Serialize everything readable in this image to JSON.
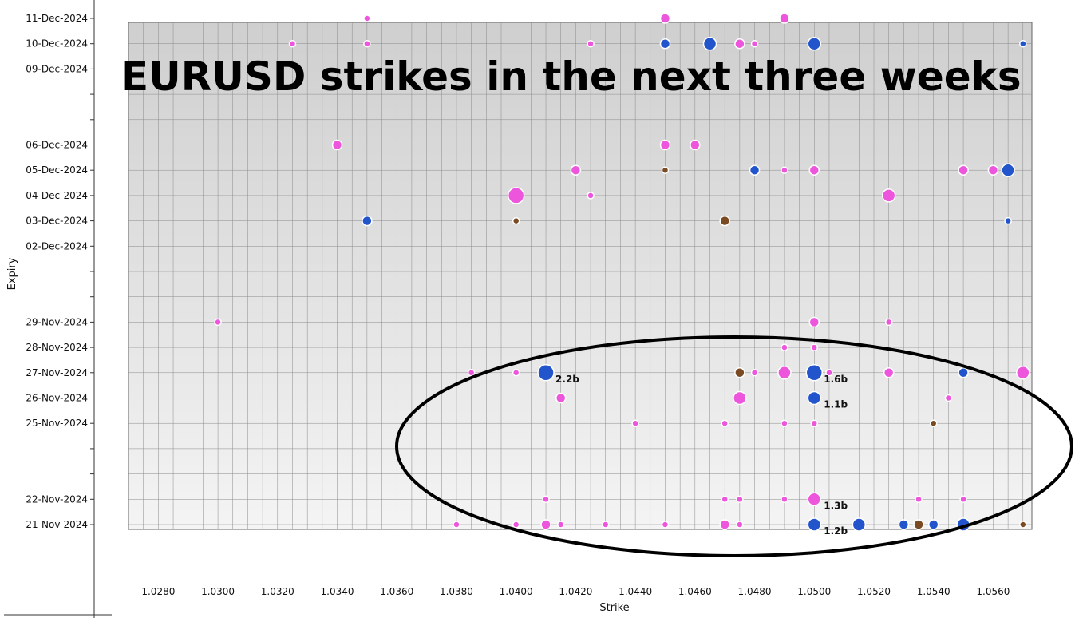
{
  "chart_data": {
    "type": "scatter",
    "title": "EURUSD strikes in the next three weeks",
    "xlabel": "Strike",
    "ylabel": "Expiry",
    "xlim": [
      1.027,
      1.0573
    ],
    "x_ticks": [
      "1.0280",
      "1.0300",
      "1.0320",
      "1.0340",
      "1.0360",
      "1.0380",
      "1.0400",
      "1.0420",
      "1.0440",
      "1.0460",
      "1.0480",
      "1.0500",
      "1.0520",
      "1.0540",
      "1.0560"
    ],
    "y_ticks": [
      "21-Nov-2024",
      "22-Nov-2024",
      "25-Nov-2024",
      "26-Nov-2024",
      "27-Nov-2024",
      "28-Nov-2024",
      "29-Nov-2024",
      "02-Dec-2024",
      "03-Dec-2024",
      "04-Dec-2024",
      "05-Dec-2024",
      "06-Dec-2024",
      "09-Dec-2024",
      "10-Dec-2024",
      "11-Dec-2024"
    ],
    "grid": true,
    "colors": {
      "pink": "#ee55dd",
      "blue": "#2255cc",
      "brown": "#7a4a22"
    },
    "annotations": [
      {
        "text": "2.2b",
        "x": 1.041,
        "y": "27-Nov-2024"
      },
      {
        "text": "1.6b",
        "x": 1.05,
        "y": "27-Nov-2024"
      },
      {
        "text": "1.1b",
        "x": 1.05,
        "y": "26-Nov-2024"
      },
      {
        "text": "1.3b",
        "x": 1.05,
        "y": "22-Nov-2024"
      },
      {
        "text": "1.2b",
        "x": 1.05,
        "y": "21-Nov-2024"
      }
    ],
    "points": [
      {
        "x": 1.035,
        "y": "11-Dec-2024",
        "c": "pink",
        "s": 1
      },
      {
        "x": 1.045,
        "y": "11-Dec-2024",
        "c": "pink",
        "s": 2
      },
      {
        "x": 1.049,
        "y": "11-Dec-2024",
        "c": "pink",
        "s": 2
      },
      {
        "x": 1.0325,
        "y": "10-Dec-2024",
        "c": "pink",
        "s": 1
      },
      {
        "x": 1.035,
        "y": "10-Dec-2024",
        "c": "pink",
        "s": 1
      },
      {
        "x": 1.0425,
        "y": "10-Dec-2024",
        "c": "pink",
        "s": 1
      },
      {
        "x": 1.045,
        "y": "10-Dec-2024",
        "c": "blue",
        "s": 2
      },
      {
        "x": 1.0465,
        "y": "10-Dec-2024",
        "c": "blue",
        "s": 3
      },
      {
        "x": 1.0475,
        "y": "10-Dec-2024",
        "c": "pink",
        "s": 2
      },
      {
        "x": 1.048,
        "y": "10-Dec-2024",
        "c": "pink",
        "s": 1
      },
      {
        "x": 1.05,
        "y": "10-Dec-2024",
        "c": "blue",
        "s": 3
      },
      {
        "x": 1.057,
        "y": "10-Dec-2024",
        "c": "blue",
        "s": 1
      },
      {
        "x": 1.034,
        "y": "06-Dec-2024",
        "c": "pink",
        "s": 2
      },
      {
        "x": 1.045,
        "y": "06-Dec-2024",
        "c": "pink",
        "s": 2
      },
      {
        "x": 1.046,
        "y": "06-Dec-2024",
        "c": "pink",
        "s": 2
      },
      {
        "x": 1.042,
        "y": "05-Dec-2024",
        "c": "pink",
        "s": 2
      },
      {
        "x": 1.045,
        "y": "05-Dec-2024",
        "c": "brown",
        "s": 1
      },
      {
        "x": 1.048,
        "y": "05-Dec-2024",
        "c": "blue",
        "s": 2
      },
      {
        "x": 1.049,
        "y": "05-Dec-2024",
        "c": "pink",
        "s": 1
      },
      {
        "x": 1.05,
        "y": "05-Dec-2024",
        "c": "pink",
        "s": 2
      },
      {
        "x": 1.055,
        "y": "05-Dec-2024",
        "c": "pink",
        "s": 2
      },
      {
        "x": 1.056,
        "y": "05-Dec-2024",
        "c": "pink",
        "s": 2
      },
      {
        "x": 1.0565,
        "y": "05-Dec-2024",
        "c": "blue",
        "s": 3
      },
      {
        "x": 1.04,
        "y": "04-Dec-2024",
        "c": "pink",
        "s": 4
      },
      {
        "x": 1.0425,
        "y": "04-Dec-2024",
        "c": "pink",
        "s": 1
      },
      {
        "x": 1.0525,
        "y": "04-Dec-2024",
        "c": "pink",
        "s": 3
      },
      {
        "x": 1.035,
        "y": "03-Dec-2024",
        "c": "blue",
        "s": 2
      },
      {
        "x": 1.04,
        "y": "03-Dec-2024",
        "c": "brown",
        "s": 1
      },
      {
        "x": 1.047,
        "y": "03-Dec-2024",
        "c": "brown",
        "s": 2
      },
      {
        "x": 1.0565,
        "y": "03-Dec-2024",
        "c": "blue",
        "s": 1
      },
      {
        "x": 1.03,
        "y": "29-Nov-2024",
        "c": "pink",
        "s": 1
      },
      {
        "x": 1.05,
        "y": "29-Nov-2024",
        "c": "pink",
        "s": 2
      },
      {
        "x": 1.0525,
        "y": "29-Nov-2024",
        "c": "pink",
        "s": 1
      },
      {
        "x": 1.049,
        "y": "28-Nov-2024",
        "c": "pink",
        "s": 1
      },
      {
        "x": 1.05,
        "y": "28-Nov-2024",
        "c": "pink",
        "s": 1
      },
      {
        "x": 1.0385,
        "y": "27-Nov-2024",
        "c": "pink",
        "s": 1
      },
      {
        "x": 1.04,
        "y": "27-Nov-2024",
        "c": "pink",
        "s": 1
      },
      {
        "x": 1.041,
        "y": "27-Nov-2024",
        "c": "blue",
        "s": 4
      },
      {
        "x": 1.0475,
        "y": "27-Nov-2024",
        "c": "brown",
        "s": 2
      },
      {
        "x": 1.048,
        "y": "27-Nov-2024",
        "c": "pink",
        "s": 1
      },
      {
        "x": 1.049,
        "y": "27-Nov-2024",
        "c": "pink",
        "s": 3
      },
      {
        "x": 1.05,
        "y": "27-Nov-2024",
        "c": "blue",
        "s": 4
      },
      {
        "x": 1.0505,
        "y": "27-Nov-2024",
        "c": "pink",
        "s": 1
      },
      {
        "x": 1.0525,
        "y": "27-Nov-2024",
        "c": "pink",
        "s": 2
      },
      {
        "x": 1.055,
        "y": "27-Nov-2024",
        "c": "blue",
        "s": 2
      },
      {
        "x": 1.057,
        "y": "27-Nov-2024",
        "c": "pink",
        "s": 3
      },
      {
        "x": 1.0415,
        "y": "26-Nov-2024",
        "c": "pink",
        "s": 2
      },
      {
        "x": 1.0475,
        "y": "26-Nov-2024",
        "c": "pink",
        "s": 3
      },
      {
        "x": 1.05,
        "y": "26-Nov-2024",
        "c": "blue",
        "s": 3
      },
      {
        "x": 1.0545,
        "y": "26-Nov-2024",
        "c": "pink",
        "s": 1
      },
      {
        "x": 1.044,
        "y": "25-Nov-2024",
        "c": "pink",
        "s": 1
      },
      {
        "x": 1.047,
        "y": "25-Nov-2024",
        "c": "pink",
        "s": 1
      },
      {
        "x": 1.049,
        "y": "25-Nov-2024",
        "c": "pink",
        "s": 1
      },
      {
        "x": 1.05,
        "y": "25-Nov-2024",
        "c": "pink",
        "s": 1
      },
      {
        "x": 1.054,
        "y": "25-Nov-2024",
        "c": "brown",
        "s": 1
      },
      {
        "x": 1.041,
        "y": "22-Nov-2024",
        "c": "pink",
        "s": 1
      },
      {
        "x": 1.047,
        "y": "22-Nov-2024",
        "c": "pink",
        "s": 1
      },
      {
        "x": 1.0475,
        "y": "22-Nov-2024",
        "c": "pink",
        "s": 1
      },
      {
        "x": 1.049,
        "y": "22-Nov-2024",
        "c": "pink",
        "s": 1
      },
      {
        "x": 1.05,
        "y": "22-Nov-2024",
        "c": "pink",
        "s": 3
      },
      {
        "x": 1.0535,
        "y": "22-Nov-2024",
        "c": "pink",
        "s": 1
      },
      {
        "x": 1.055,
        "y": "22-Nov-2024",
        "c": "pink",
        "s": 1
      },
      {
        "x": 1.038,
        "y": "21-Nov-2024",
        "c": "pink",
        "s": 1
      },
      {
        "x": 1.04,
        "y": "21-Nov-2024",
        "c": "pink",
        "s": 1
      },
      {
        "x": 1.041,
        "y": "21-Nov-2024",
        "c": "pink",
        "s": 2
      },
      {
        "x": 1.0415,
        "y": "21-Nov-2024",
        "c": "pink",
        "s": 1
      },
      {
        "x": 1.043,
        "y": "21-Nov-2024",
        "c": "pink",
        "s": 1
      },
      {
        "x": 1.045,
        "y": "21-Nov-2024",
        "c": "pink",
        "s": 1
      },
      {
        "x": 1.047,
        "y": "21-Nov-2024",
        "c": "pink",
        "s": 2
      },
      {
        "x": 1.0475,
        "y": "21-Nov-2024",
        "c": "pink",
        "s": 1
      },
      {
        "x": 1.05,
        "y": "21-Nov-2024",
        "c": "blue",
        "s": 3
      },
      {
        "x": 1.0515,
        "y": "21-Nov-2024",
        "c": "blue",
        "s": 3
      },
      {
        "x": 1.053,
        "y": "21-Nov-2024",
        "c": "blue",
        "s": 2
      },
      {
        "x": 1.0535,
        "y": "21-Nov-2024",
        "c": "brown",
        "s": 2
      },
      {
        "x": 1.054,
        "y": "21-Nov-2024",
        "c": "blue",
        "s": 2
      },
      {
        "x": 1.055,
        "y": "21-Nov-2024",
        "c": "blue",
        "s": 3
      },
      {
        "x": 1.057,
        "y": "21-Nov-2024",
        "c": "brown",
        "s": 1
      }
    ]
  }
}
